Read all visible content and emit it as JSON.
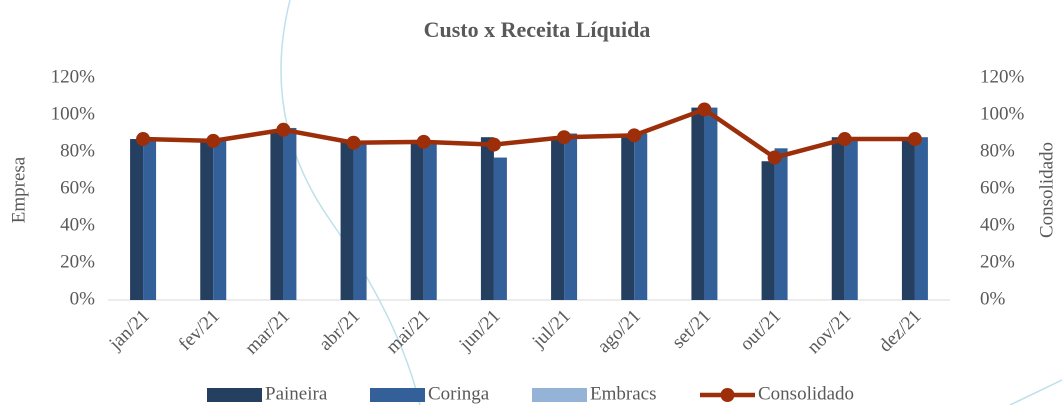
{
  "chart_data": {
    "type": "bar_line",
    "title": "Custo x Receita Líquida",
    "y_label": "Empresa",
    "y2_label": "Consolidado",
    "categories": [
      "jan/21",
      "fev/21",
      "mar/21",
      "abr/21",
      "mai/21",
      "jun/21",
      "jul/21",
      "ago/21",
      "set/21",
      "out/21",
      "nov/21",
      "dez/21"
    ],
    "series": [
      {
        "name": "Paineira",
        "color": "#243f60",
        "type": "bar",
        "values": [
          87,
          86,
          92,
          86,
          86,
          88,
          88,
          89,
          104,
          75,
          88,
          86
        ]
      },
      {
        "name": "Coringa",
        "color": "#34609a",
        "type": "bar",
        "values": [
          87,
          86,
          93,
          84,
          86,
          77,
          90,
          90,
          104,
          82,
          88,
          88
        ]
      },
      {
        "name": "Embracs",
        "color": "#95b3d7",
        "type": "bar",
        "values": [
          0,
          0,
          0,
          0,
          0,
          0,
          0,
          0,
          0,
          0,
          0,
          0
        ]
      },
      {
        "name": "Consolidado",
        "color": "#9c2f0a",
        "type": "line",
        "axis": "y2",
        "values": [
          87,
          86,
          92,
          85,
          85.5,
          84,
          88,
          89,
          103,
          77,
          87,
          87
        ]
      }
    ],
    "ylim": [
      0,
      120
    ],
    "yticks": [
      {
        "value": 0,
        "label": "0%"
      },
      {
        "value": 20,
        "label": "20%"
      },
      {
        "value": 40,
        "label": "40%"
      },
      {
        "value": 60,
        "label": "60%"
      },
      {
        "value": 80,
        "label": "80%"
      },
      {
        "value": 100,
        "label": "100%"
      },
      {
        "value": 120,
        "label": "120%"
      }
    ],
    "y2lim": [
      0,
      120
    ],
    "y2ticks": [
      {
        "value": 0,
        "label": "0%"
      },
      {
        "value": 20,
        "label": "20%"
      },
      {
        "value": 40,
        "label": "40%"
      },
      {
        "value": 60,
        "label": "60%"
      },
      {
        "value": 80,
        "label": "80%"
      },
      {
        "value": 100,
        "label": "100%"
      },
      {
        "value": 120,
        "label": "120%"
      }
    ],
    "legend": "bottom"
  }
}
